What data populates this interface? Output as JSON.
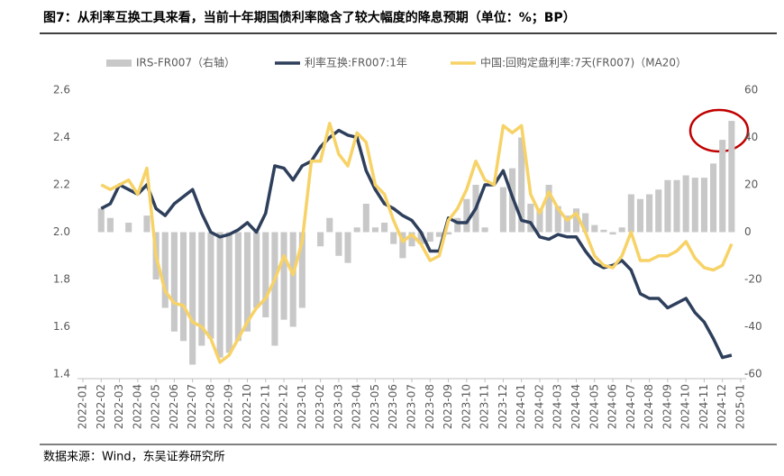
{
  "chart_data": {
    "type": "combo",
    "title": "图7：从利率互换工具来看，当前十年期国债利率隐含了较大幅度的降息预期（单位：%；BP）",
    "source": "数据来源：Wind，东吴证券研究所",
    "categories": [
      "2022-01",
      null,
      "2022-02",
      null,
      "2022-03",
      null,
      "2022-04",
      null,
      "2022-05",
      null,
      "2022-06",
      null,
      "2022-07",
      null,
      "2022-08",
      null,
      "2022-09",
      null,
      "2022-10",
      null,
      "2022-11",
      null,
      "2022-12",
      null,
      "2023-01",
      null,
      "2023-02",
      null,
      "2023-03",
      null,
      "2023-04",
      null,
      "2023-05",
      null,
      "2023-06",
      null,
      "2023-07",
      null,
      "2023-08",
      null,
      "2023-09",
      null,
      "2023-10",
      null,
      "2023-11",
      null,
      "2023-12",
      null,
      "2024-01",
      null,
      "2024-02",
      null,
      "2024-03",
      null,
      "2024-04",
      null,
      "2024-05",
      null,
      "2024-06",
      null,
      "2024-07",
      null,
      "2024-08",
      null,
      "2024-09",
      null,
      "2024-10",
      null,
      "2024-11",
      null,
      "2024-12",
      null,
      "2025-01"
    ],
    "ylim": [
      1.4,
      2.6
    ],
    "yticks": [
      1.4,
      1.6,
      1.8,
      {
        "value": 2.0,
        "label": "2.0"
      },
      2.2,
      2.4,
      2.6
    ],
    "y2lim": [
      -60,
      60
    ],
    "y2ticks": [
      -60,
      -40,
      -20,
      0,
      20,
      40,
      60
    ],
    "series": [
      {
        "name": "IRS-FR007（右轴）",
        "type": "bar",
        "axis": "y2",
        "color": "#c8c8c8",
        "values": [
          null,
          null,
          10,
          6,
          0,
          4,
          0,
          7,
          -20,
          -32,
          -42,
          -46,
          -56,
          -48,
          -45,
          -53,
          -51,
          -46,
          -42,
          -32,
          -36,
          -48,
          -37,
          -40,
          -32,
          0,
          -6,
          6,
          -10,
          -13,
          2,
          12,
          2,
          4,
          -5,
          -11,
          -6,
          -5,
          -4,
          -2,
          -1,
          6,
          14,
          20,
          2,
          0,
          19,
          27,
          40,
          12,
          10,
          20,
          11,
          7,
          10,
          8,
          3,
          1,
          -1,
          2,
          16,
          14,
          16,
          18,
          22,
          22,
          24,
          23,
          23,
          29,
          39,
          47,
          null
        ]
      },
      {
        "name": "利率互换:FR007:1年",
        "type": "line",
        "color": "#2e3f5c",
        "values": [
          null,
          null,
          2.1,
          2.12,
          2.2,
          2.18,
          2.16,
          2.2,
          2.1,
          2.07,
          2.12,
          2.15,
          2.18,
          2.08,
          2.0,
          1.98,
          1.99,
          2.01,
          2.04,
          2.0,
          2.08,
          2.28,
          2.27,
          2.22,
          2.28,
          2.3,
          2.36,
          2.4,
          2.43,
          2.41,
          2.4,
          2.26,
          2.18,
          2.12,
          2.1,
          2.07,
          2.05,
          2.0,
          1.92,
          1.92,
          2.06,
          2.04,
          2.04,
          2.1,
          2.2,
          2.2,
          2.26,
          2.15,
          2.05,
          2.04,
          1.98,
          1.97,
          1.99,
          1.98,
          1.98,
          1.92,
          1.87,
          1.85,
          1.86,
          1.88,
          1.84,
          1.74,
          1.72,
          1.72,
          1.68,
          1.7,
          1.72,
          1.66,
          1.62,
          1.55,
          1.47,
          1.48,
          null
        ]
      },
      {
        "name": "中国:回购定盘利率:7天(FR007)（MA20）",
        "type": "line",
        "color": "#f7d266",
        "values": [
          null,
          null,
          2.2,
          2.18,
          2.2,
          2.22,
          2.16,
          2.27,
          1.9,
          1.75,
          1.7,
          1.69,
          1.62,
          1.6,
          1.55,
          1.45,
          1.48,
          1.55,
          1.62,
          1.68,
          1.72,
          1.8,
          1.9,
          1.82,
          1.96,
          2.3,
          2.3,
          2.46,
          2.33,
          2.28,
          2.42,
          2.38,
          2.2,
          2.16,
          2.05,
          1.96,
          1.99,
          1.95,
          1.88,
          1.9,
          2.05,
          2.1,
          2.18,
          2.3,
          2.22,
          2.2,
          2.45,
          2.42,
          2.45,
          2.16,
          2.08,
          2.17,
          2.1,
          2.05,
          2.08,
          2.0,
          1.9,
          1.86,
          1.85,
          1.9,
          2.0,
          1.88,
          1.88,
          1.9,
          1.9,
          1.92,
          1.96,
          1.89,
          1.85,
          1.84,
          1.86,
          1.95,
          null
        ]
      }
    ]
  }
}
